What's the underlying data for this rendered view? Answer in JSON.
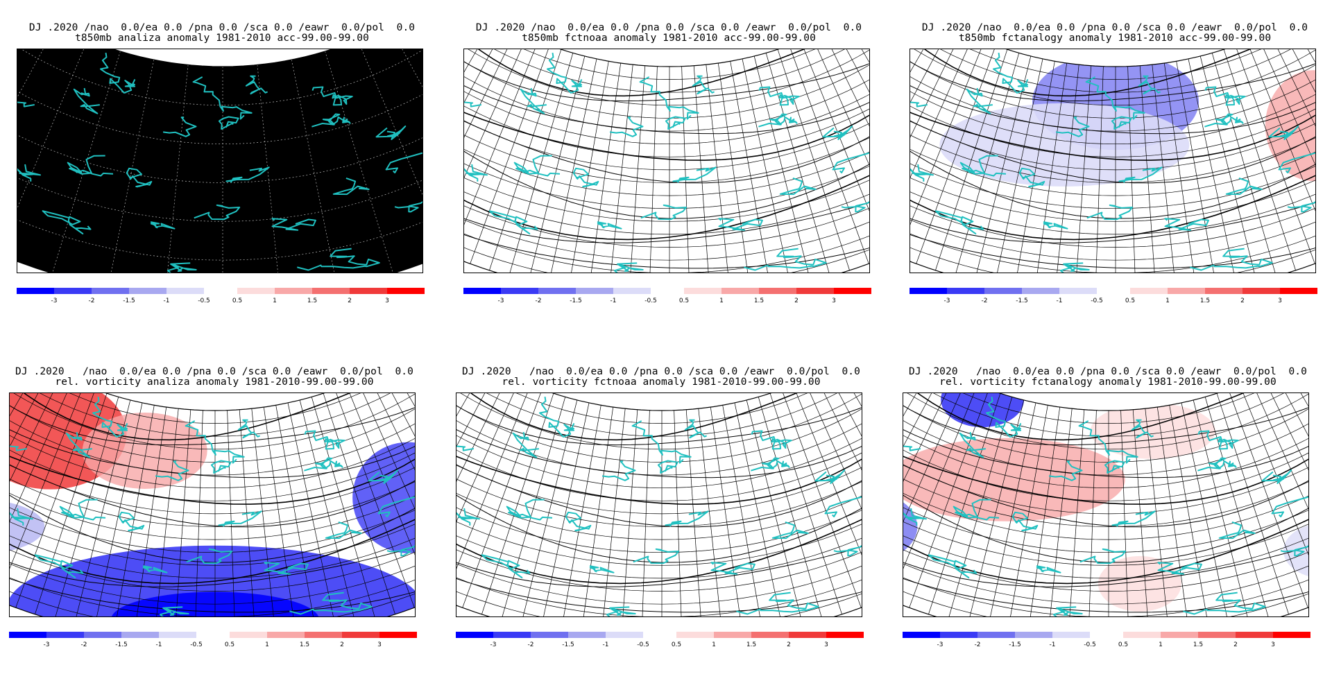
{
  "panels": [
    {
      "title_line1": "DJ .2020 /nao  0.0/ea 0.0 /pna 0.0 /sca 0.0 /eawr  0.0/pol  0.0",
      "title_line2": "t850mb analiza anomaly 1981-2010 acc-99.00-99.00",
      "style": "dark"
    },
    {
      "title_line1": "DJ .2020 /nao  0.0/ea 0.0 /pna 0.0 /sca 0.0 /eawr  0.0/pol  0.0",
      "title_line2": "t850mb fctnoaa anomaly 1981-2010 acc-99.00-99.00",
      "style": "contour"
    },
    {
      "title_line1": "DJ .2020 /nao  0.0/ea 0.0 /pna 0.0 /sca 0.0 /eawr  0.0/pol  0.0",
      "title_line2": "t850mb fctanalogy anomaly 1981-2010 acc-99.00-99.00",
      "style": "shaded-t"
    },
    {
      "title_line1": "DJ .2020   /nao  0.0/ea 0.0 /pna 0.0 /sca 0.0 /eawr  0.0/pol  0.0",
      "title_line2": "rel. vorticity analiza anomaly 1981-2010-99.00-99.00",
      "style": "shaded-v"
    },
    {
      "title_line1": "DJ .2020   /nao  0.0/ea 0.0 /pna 0.0 /sca 0.0 /eawr  0.0/pol  0.0",
      "title_line2": "rel. vorticity fctnoaa anomaly 1981-2010-99.00-99.00",
      "style": "contour"
    },
    {
      "title_line1": "DJ .2020   /nao  0.0/ea 0.0 /pna 0.0 /sca 0.0 /eawr  0.0/pol  0.0",
      "title_line2": "rel. vorticity fctanalogy anomaly 1981-2010-99.00-99.00",
      "style": "shaded-f"
    }
  ],
  "colorbar": {
    "negative_labels": [
      "-3",
      "-2",
      "-1.5",
      "-1",
      "-0.5"
    ],
    "positive_labels": [
      "0.5",
      "1",
      "1.5",
      "2",
      "3"
    ],
    "negative_colors": [
      "#0000ff",
      "#3a3af5",
      "#7070f0",
      "#a8a8f0",
      "#dcdcf8"
    ],
    "positive_colors": [
      "#fcdcdc",
      "#f8a8a8",
      "#f47070",
      "#f03a3a",
      "#ff0000"
    ]
  },
  "colors": {
    "coastline": "#20c0c0",
    "grid": "#000000",
    "map_background_dark": "#000000"
  }
}
